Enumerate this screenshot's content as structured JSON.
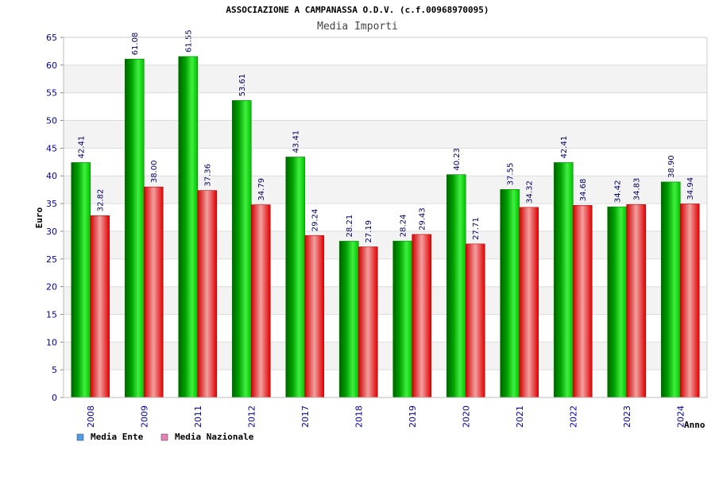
{
  "chart_data": {
    "type": "bar",
    "title": "ASSOCIAZIONE A CAMPANASSA O.D.V. (c.f.00968970095)",
    "subtitle": "Media Importi",
    "ylabel": "Euro",
    "xlabel": "Anno",
    "ylim": [
      0,
      65
    ],
    "ytick_step": 5,
    "grid": true,
    "legend_position": "bottom-left",
    "categories": [
      "2008",
      "2009",
      "2011",
      "2012",
      "2017",
      "2018",
      "2019",
      "2020",
      "2021",
      "2022",
      "2023",
      "2024"
    ],
    "series": [
      {
        "name": "Media Ente",
        "color": "#00b000",
        "legend_color": "#4f9be8",
        "values": [
          42.41,
          61.08,
          61.55,
          53.61,
          43.41,
          28.21,
          28.24,
          40.23,
          37.55,
          42.41,
          34.42,
          38.9
        ],
        "labels": [
          "42.41",
          "61.08",
          "61.55",
          "53.61",
          "43.41",
          "28.21",
          "28.24",
          "40.23",
          "37.55",
          "42.41",
          "34.42",
          "38.90"
        ]
      },
      {
        "name": "Media Nazionale",
        "color": "#e00000",
        "legend_color": "#e67fb4",
        "values": [
          32.82,
          38.0,
          37.36,
          34.79,
          29.24,
          27.19,
          29.43,
          27.71,
          34.32,
          34.68,
          34.83,
          34.94
        ],
        "labels": [
          "32.82",
          "38.00",
          "37.36",
          "34.79",
          "29.24",
          "27.19",
          "29.43",
          "27.71",
          "34.32",
          "34.68",
          "34.83",
          "34.94"
        ]
      }
    ]
  }
}
